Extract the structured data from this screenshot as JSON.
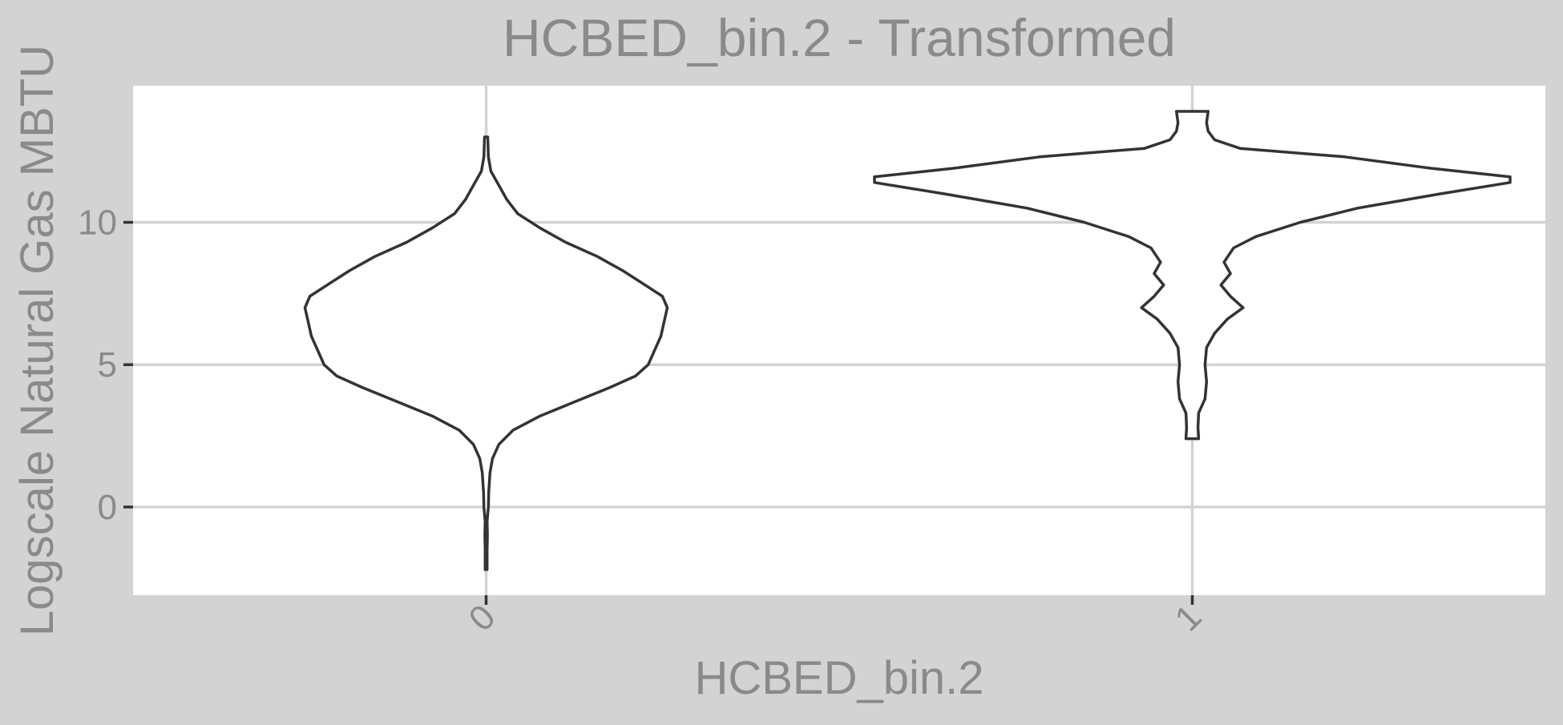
{
  "chart_data": {
    "type": "violin",
    "title": "HCBED_bin.2 - Transformed",
    "xlabel": "HCBED_bin.2",
    "ylabel": "Logscale Natural Gas MBTU",
    "categories": [
      "0",
      "1"
    ],
    "yticks": [
      0,
      5,
      10
    ],
    "ytick_labels": [
      "0",
      "5",
      "10"
    ],
    "ylim": [
      -3.1,
      14.8
    ],
    "grid": true,
    "legend": "none",
    "colors": {
      "panel_bg": "#d3d3d3",
      "plot_bg": "#ffffff",
      "grid": "#d3d3d3",
      "outline": "#333333",
      "text": "#8a8a8a"
    },
    "violins": [
      {
        "category": "0",
        "density": [
          [
            -2.2,
            0.003
          ],
          [
            -1.5,
            0.003
          ],
          [
            -1.0,
            0.004
          ],
          [
            -0.5,
            0.003
          ],
          [
            0.0,
            0.007
          ],
          [
            0.5,
            0.008
          ],
          [
            1.2,
            0.012
          ],
          [
            1.7,
            0.02
          ],
          [
            2.2,
            0.04
          ],
          [
            2.7,
            0.085
          ],
          [
            3.2,
            0.17
          ],
          [
            3.7,
            0.28
          ],
          [
            4.2,
            0.39
          ],
          [
            4.6,
            0.47
          ],
          [
            5.0,
            0.51
          ],
          [
            5.5,
            0.53
          ],
          [
            6.0,
            0.55
          ],
          [
            6.5,
            0.56
          ],
          [
            7.0,
            0.57
          ],
          [
            7.4,
            0.555
          ],
          [
            7.8,
            0.5
          ],
          [
            8.3,
            0.43
          ],
          [
            8.8,
            0.35
          ],
          [
            9.3,
            0.25
          ],
          [
            9.8,
            0.17
          ],
          [
            10.3,
            0.1
          ],
          [
            10.8,
            0.065
          ],
          [
            11.3,
            0.04
          ],
          [
            11.8,
            0.015
          ],
          [
            12.3,
            0.007
          ],
          [
            13.0,
            0.005
          ]
        ]
      },
      {
        "category": "1",
        "density": [
          [
            2.4,
            0.02
          ],
          [
            2.8,
            0.018
          ],
          [
            3.3,
            0.02
          ],
          [
            3.8,
            0.04
          ],
          [
            4.4,
            0.045
          ],
          [
            5.0,
            0.04
          ],
          [
            5.6,
            0.045
          ],
          [
            6.1,
            0.07
          ],
          [
            6.6,
            0.11
          ],
          [
            7.0,
            0.16
          ],
          [
            7.4,
            0.12
          ],
          [
            7.8,
            0.09
          ],
          [
            8.2,
            0.12
          ],
          [
            8.6,
            0.1
          ],
          [
            9.1,
            0.13
          ],
          [
            9.5,
            0.2
          ],
          [
            10.0,
            0.34
          ],
          [
            10.5,
            0.52
          ],
          [
            11.0,
            0.78
          ],
          [
            11.4,
            1.0
          ],
          [
            11.6,
            1.0
          ],
          [
            11.9,
            0.75
          ],
          [
            12.3,
            0.48
          ],
          [
            12.6,
            0.15
          ],
          [
            12.9,
            0.07
          ],
          [
            13.2,
            0.05
          ],
          [
            13.5,
            0.045
          ],
          [
            13.9,
            0.05
          ]
        ]
      }
    ]
  }
}
